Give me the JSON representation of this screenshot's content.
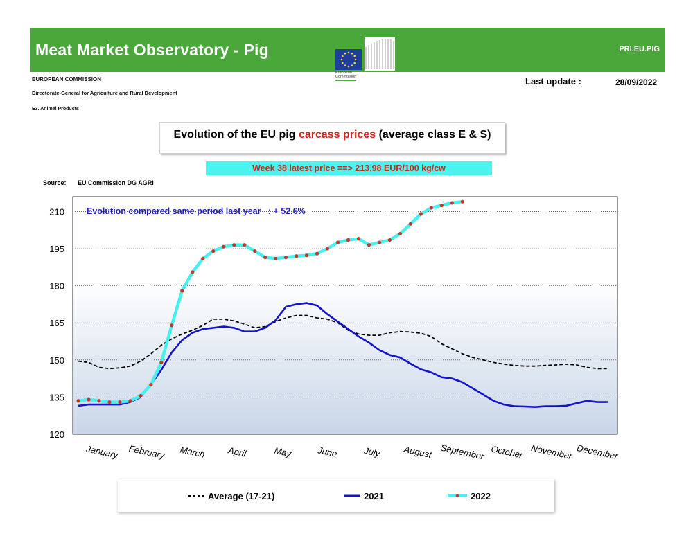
{
  "header": {
    "title": "Meat Market Observatory - Pig",
    "code": "PRI.EU.PIG",
    "logo_caption_line1": "European",
    "logo_caption_line2": "Commission",
    "org_line1": "EUROPEAN COMMISSION",
    "org_line2": "Directorate-General for Agriculture and Rural Development",
    "org_line3": "E3. Animal Products",
    "last_update_label": "Last update :",
    "last_update_value": "28/09/2022"
  },
  "title": {
    "part1": "Evolution of the EU pig ",
    "highlight": "carcass prices",
    "part2": " (average class E & S)"
  },
  "latest_price": "Week 38 latest price ==>  213.98 EUR/100 kg/cw",
  "source": {
    "label": "Source:",
    "value": "EU Commission DG AGRI"
  },
  "colors": {
    "banner": "#4aa83a",
    "highlight": "#d2231d",
    "latest_bg": "#4cf2ee",
    "avg_line": "#000000",
    "line_2021": "#1414c8",
    "line_2022": "#48efef",
    "marker_2022": "#c0392b",
    "annotation": "#1c1cbf"
  },
  "chart_data": {
    "type": "line",
    "annotation": "Evolution compared same period last year   : + 52.6%",
    "ylim": [
      120,
      216
    ],
    "yticks": [
      120,
      135,
      150,
      165,
      180,
      195,
      210
    ],
    "month_labels": [
      "January",
      "February",
      "March",
      "April",
      "May",
      "June",
      "July",
      "August",
      "September",
      "October",
      "November",
      "December"
    ],
    "week_range": [
      1,
      52
    ],
    "legend": [
      "Average (17-21)",
      "2021",
      "2022"
    ],
    "series": [
      {
        "name": "Average (17-21)",
        "style": "dashed",
        "x": [
          1,
          2,
          3,
          4,
          5,
          6,
          7,
          8,
          9,
          10,
          11,
          12,
          13,
          14,
          15,
          16,
          17,
          18,
          19,
          20,
          21,
          22,
          23,
          24,
          25,
          26,
          27,
          28,
          29,
          30,
          31,
          32,
          33,
          34,
          35,
          36,
          37,
          38,
          39,
          40,
          41,
          42,
          43,
          44,
          45,
          46,
          47,
          48,
          49,
          50,
          51,
          52
        ],
        "values": [
          149.5,
          149,
          147,
          146.5,
          146.8,
          147.5,
          149.5,
          152.5,
          156,
          158.5,
          160.5,
          162,
          164,
          166.5,
          166.5,
          165.8,
          164.5,
          163,
          163.5,
          165.5,
          167,
          168,
          168,
          167,
          166.5,
          165,
          162,
          160.5,
          160,
          160,
          161,
          161.5,
          161.3,
          160.8,
          159.5,
          156.5,
          154.5,
          152.5,
          151,
          150,
          149,
          148.3,
          147.8,
          147.5,
          147.5,
          147.8,
          148,
          148.3,
          148,
          147,
          146.5,
          146.5
        ]
      },
      {
        "name": "2021",
        "style": "solid",
        "x": [
          1,
          2,
          3,
          4,
          5,
          6,
          7,
          8,
          9,
          10,
          11,
          12,
          13,
          14,
          15,
          16,
          17,
          18,
          19,
          20,
          21,
          22,
          23,
          24,
          25,
          26,
          27,
          28,
          29,
          30,
          31,
          32,
          33,
          34,
          35,
          36,
          37,
          38,
          39,
          40,
          41,
          42,
          43,
          44,
          45,
          46,
          47,
          48,
          49,
          50,
          51,
          52
        ],
        "values": [
          131.5,
          132,
          132,
          132,
          132,
          133,
          135,
          140,
          146,
          153,
          158,
          161,
          162.5,
          163,
          163.5,
          163,
          161.5,
          161.5,
          163,
          166,
          171.5,
          172.5,
          173,
          172,
          168.5,
          165.5,
          162.5,
          159.5,
          157,
          154,
          152,
          151,
          148.5,
          146.2,
          145,
          143,
          142.5,
          141,
          138.5,
          136,
          133.5,
          132,
          131.3,
          131.2,
          131,
          131.3,
          131.3,
          131.5,
          132.5,
          133.5,
          133,
          133
        ]
      },
      {
        "name": "2022",
        "style": "solid-markers",
        "x": [
          1,
          2,
          3,
          4,
          5,
          6,
          7,
          8,
          9,
          10,
          11,
          12,
          13,
          14,
          15,
          16,
          17,
          18,
          19,
          20,
          21,
          22,
          23,
          24,
          25,
          26,
          27,
          28,
          29,
          30,
          31,
          32,
          33,
          34,
          35,
          36,
          37,
          38
        ],
        "values": [
          133.5,
          134,
          133.5,
          133,
          133,
          133.5,
          135.5,
          140,
          149,
          164,
          178,
          185.5,
          191,
          194,
          195.8,
          196.5,
          196.5,
          194,
          191.5,
          191,
          191.5,
          192,
          192.3,
          193,
          195,
          197.5,
          198.5,
          199,
          196.5,
          197.5,
          198.5,
          201,
          205,
          209,
          211.5,
          212.5,
          213.5,
          213.98
        ]
      }
    ]
  }
}
